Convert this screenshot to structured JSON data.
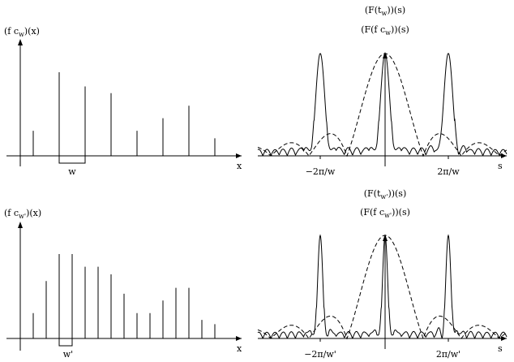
{
  "top": {
    "left_ylabel": "(f c",
    "left_ylabel_sub": "w",
    "left_ylabel_end": ")(x)",
    "left_xlabel": "x",
    "left_window_label": "w",
    "sample_heights": [
      0.3,
      0.0,
      1.0,
      0.0,
      0.83,
      0.0,
      0.75,
      0.0,
      0.3,
      0.0,
      0.45,
      0.0,
      0.6,
      0.0,
      0.21
    ],
    "right_label1": "(F(t",
    "right_label1_sub": "w",
    "right_label1_end": "))(s)",
    "right_label2": "(F(f c",
    "right_label2_sub": "w",
    "right_label2_end": "))(s)",
    "right_xlabel": "s",
    "tick_neg": "−2π/w",
    "tick_pos": "2π/w",
    "peak_width": 14
  },
  "bottom": {
    "left_ylabel": "(f c",
    "left_ylabel_sub": "w'",
    "left_ylabel_end": ")(x)",
    "left_xlabel": "x",
    "left_window_label": "w'",
    "sample_heights": [
      0.3,
      0.68,
      1.0,
      1.0,
      0.85,
      0.85,
      0.76,
      0.53,
      0.3,
      0.3,
      0.45,
      0.6,
      0.6,
      0.22,
      0.17
    ],
    "right_label1": "(F(t",
    "right_label1_sub": "w'",
    "right_label1_end": "))(s)",
    "right_label2": "(F(f c",
    "right_label2_sub": "w'",
    "right_label2_end": "))(s)",
    "right_xlabel": "s",
    "tick_neg": "−2π/w'",
    "tick_pos": "2π/w'",
    "peak_width": 8
  }
}
